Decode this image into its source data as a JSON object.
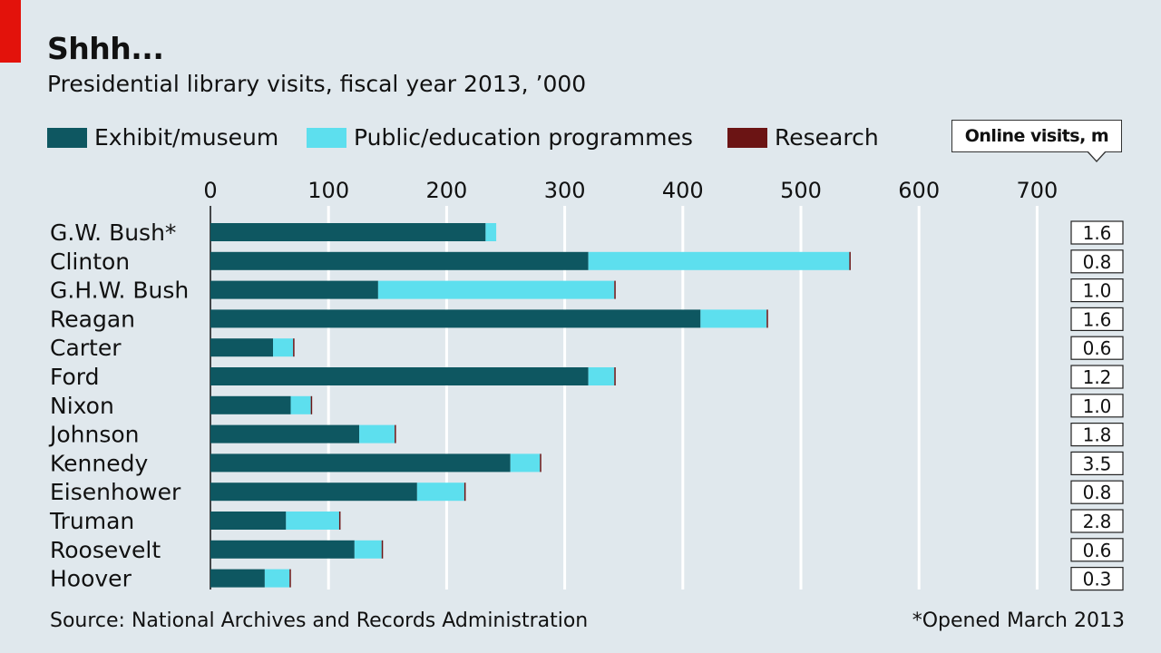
{
  "header": {
    "title": "Shhh...",
    "subtitle": "Presidential library visits, fiscal year 2013, ’000"
  },
  "legend": {
    "items": [
      {
        "label": "Exhibit/museum",
        "color": "#0e5761"
      },
      {
        "label": "Public/education programmes",
        "color": "#5ddfee"
      },
      {
        "label": "Research",
        "color": "#6b1414"
      }
    ],
    "online_label": "Online visits, m"
  },
  "footer": {
    "source": "Source: National Archives and Records Administration",
    "note": "*Opened March 2013"
  },
  "chart_data": {
    "type": "bar",
    "orientation": "horizontal",
    "stacked": true,
    "xlim": [
      0,
      700
    ],
    "xticks": [
      "0",
      "100",
      "200",
      "300",
      "400",
      "500",
      "600",
      "700"
    ],
    "grid": true,
    "legend_position": "top",
    "categories": [
      "G.W. Bush*",
      "Clinton",
      "G.H.W. Bush",
      "Reagan",
      "Carter",
      "Ford",
      "Nixon",
      "Johnson",
      "Kennedy",
      "Eisenhower",
      "Truman",
      "Roosevelt",
      "Hoover"
    ],
    "series": [
      {
        "name": "Exhibit/museum",
        "color": "#0e5761",
        "values": [
          233,
          320,
          142,
          415,
          53,
          320,
          68,
          126,
          254,
          175,
          64,
          122,
          46
        ]
      },
      {
        "name": "Public/education programmes",
        "color": "#5ddfee",
        "values": [
          9,
          221,
          200,
          56,
          17,
          22,
          17,
          30,
          25,
          40,
          45,
          23,
          21
        ]
      },
      {
        "name": "Research",
        "color": "#6b1414",
        "values": [
          0,
          1,
          1,
          1,
          1,
          1,
          1,
          1,
          1,
          1,
          1,
          1,
          1
        ]
      }
    ],
    "online_visits_m": [
      "1.6",
      "0.8",
      "1.0",
      "1.6",
      "0.6",
      "1.2",
      "1.0",
      "1.8",
      "3.5",
      "0.8",
      "2.8",
      "0.6",
      "0.3"
    ]
  }
}
